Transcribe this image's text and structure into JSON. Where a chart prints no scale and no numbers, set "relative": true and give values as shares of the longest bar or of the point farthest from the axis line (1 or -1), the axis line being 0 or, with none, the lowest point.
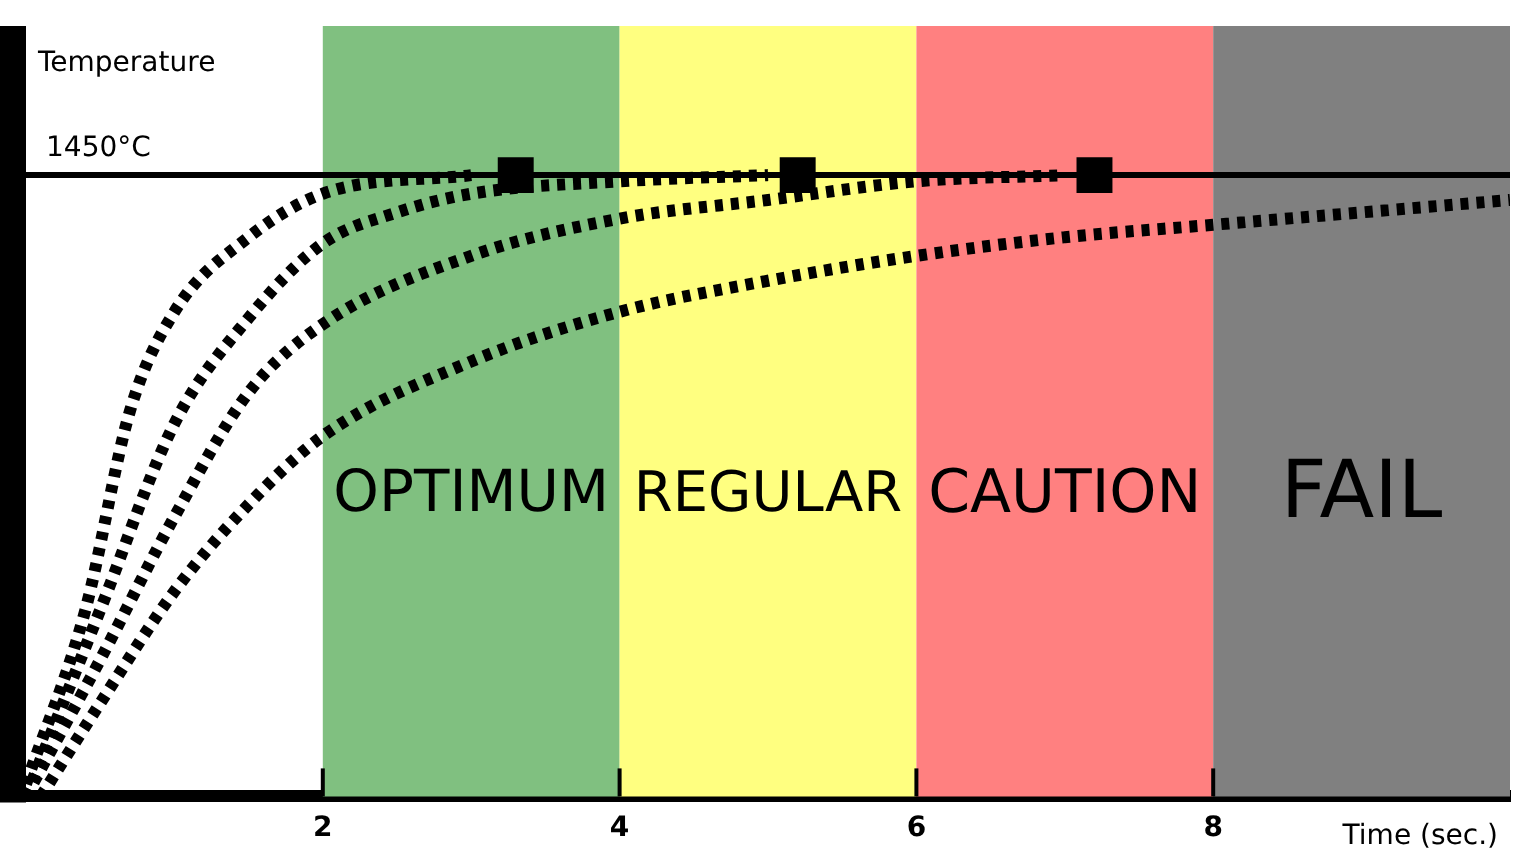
{
  "chart_data": {
    "type": "line",
    "relative": true,
    "ylabel": "Temperature",
    "xlabel": "Time (sec.)",
    "xlim": [
      0,
      10
    ],
    "xticks": [
      2,
      4,
      6,
      8
    ],
    "grid": false,
    "legend": false,
    "line_style": "dotted",
    "marker": "none",
    "bands": [
      {
        "axis": "x",
        "from": 2,
        "to": 4,
        "label": "OPTIMUM",
        "color": "#80c080"
      },
      {
        "axis": "x",
        "from": 4,
        "to": 6,
        "label": "REGULAR",
        "color": "#ffff80"
      },
      {
        "axis": "x",
        "from": 6,
        "to": 8,
        "label": "CAUTION",
        "color": "#ff8080"
      },
      {
        "axis": "x",
        "from": 8,
        "to": 10,
        "label": "FAIL",
        "color": "#808080"
      }
    ],
    "ref_lines": [
      {
        "axis": "y",
        "value": 1,
        "label": "1450°C",
        "color": "#000000",
        "line_style": "solid"
      }
    ],
    "series": [
      {
        "color": "#000000",
        "x": [
          0,
          0.4,
          0.7,
          1,
          1.5,
          2,
          3
        ],
        "values": [
          0.02,
          0.3,
          0.62,
          0.78,
          0.9,
          0.97,
          1.0
        ]
      },
      {
        "color": "#000000",
        "x": [
          0,
          0.5,
          1,
          1.5,
          2,
          2.5,
          3,
          4,
          5
        ],
        "values": [
          0,
          0.3,
          0.6,
          0.77,
          0.89,
          0.94,
          0.97,
          0.99,
          1.0
        ]
      },
      {
        "color": "#000000",
        "x": [
          0,
          0.5,
          1,
          1.5,
          2,
          3,
          4,
          5,
          6,
          7
        ],
        "values": [
          0,
          0.22,
          0.45,
          0.65,
          0.76,
          0.87,
          0.93,
          0.96,
          0.99,
          1.0
        ]
      },
      {
        "color": "#000000",
        "x": [
          0.1,
          0.5,
          1,
          1.5,
          2,
          3,
          4,
          5,
          6,
          7,
          8,
          9,
          10
        ],
        "values": [
          0,
          0.15,
          0.33,
          0.47,
          0.58,
          0.7,
          0.78,
          0.83,
          0.87,
          0.9,
          0.92,
          0.94,
          0.96
        ]
      },
      {
        "type": "scatter",
        "color": "#000000",
        "marker": "square",
        "x": [
          3.3,
          5.2,
          7.2
        ],
        "values": [
          1,
          1,
          1
        ]
      }
    ]
  }
}
